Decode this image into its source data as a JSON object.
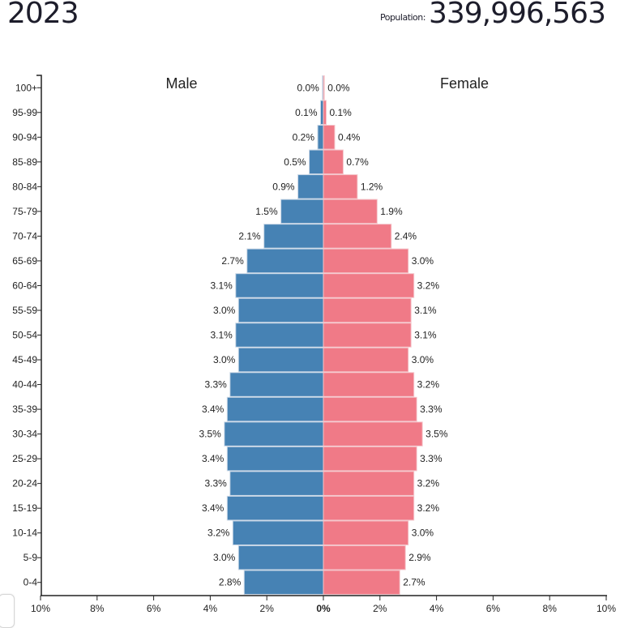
{
  "header": {
    "year": "2023",
    "population_label": "Population:",
    "population_value": "339,996,563"
  },
  "colors": {
    "male": "#4682b4",
    "female": "#f07a87",
    "axis": "#222222",
    "bar_border": "#c9d7e6"
  },
  "chart_data": {
    "type": "bar",
    "subtype": "population-pyramid",
    "title": "",
    "xlabel": "",
    "ylabel": "",
    "xlim": [
      -10,
      10
    ],
    "x_ticks": [
      "10%",
      "8%",
      "6%",
      "4%",
      "2%",
      "0%",
      "2%",
      "4%",
      "6%",
      "8%",
      "10%"
    ],
    "legend_labels": {
      "male": "Male",
      "female": "Female"
    },
    "categories": [
      "100+",
      "95-99",
      "90-94",
      "85-89",
      "80-84",
      "75-79",
      "70-74",
      "65-69",
      "60-64",
      "55-59",
      "50-54",
      "45-49",
      "40-44",
      "35-39",
      "30-34",
      "25-29",
      "20-24",
      "15-19",
      "10-14",
      "5-9",
      "0-4"
    ],
    "series": [
      {
        "name": "Male",
        "values": [
          0.0,
          0.1,
          0.2,
          0.5,
          0.9,
          1.5,
          2.1,
          2.7,
          3.1,
          3.0,
          3.1,
          3.0,
          3.3,
          3.4,
          3.5,
          3.4,
          3.3,
          3.4,
          3.2,
          3.0,
          2.8
        ]
      },
      {
        "name": "Female",
        "values": [
          0.0,
          0.1,
          0.4,
          0.7,
          1.2,
          1.9,
          2.4,
          3.0,
          3.2,
          3.1,
          3.1,
          3.0,
          3.2,
          3.3,
          3.5,
          3.3,
          3.2,
          3.2,
          3.0,
          2.9,
          2.7
        ]
      }
    ]
  }
}
